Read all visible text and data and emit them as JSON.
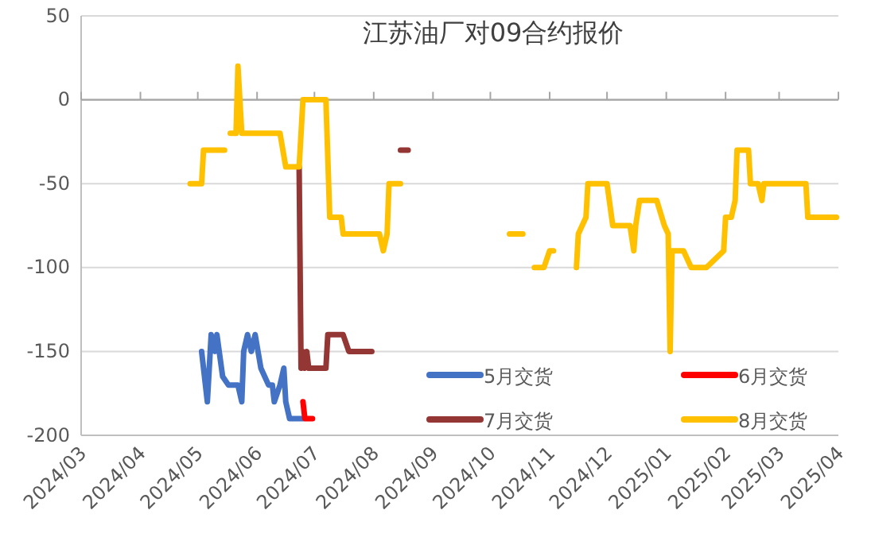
{
  "chart_data": {
    "type": "line",
    "title": "江苏油厂对09合约报价",
    "xlim": [
      "2024-03-01",
      "2025-04-01"
    ],
    "xticks": [
      {
        "value": "2024-03-01",
        "label": "2024/03"
      },
      {
        "value": "2024-04-01",
        "label": "2024/04"
      },
      {
        "value": "2024-05-01",
        "label": "2024/05"
      },
      {
        "value": "2024-06-01",
        "label": "2024/06"
      },
      {
        "value": "2024-07-01",
        "label": "2024/07"
      },
      {
        "value": "2024-08-01",
        "label": "2024/08"
      },
      {
        "value": "2024-09-01",
        "label": "2024/09"
      },
      {
        "value": "2024-10-01",
        "label": "2024/10"
      },
      {
        "value": "2024-11-01",
        "label": "2024/11"
      },
      {
        "value": "2024-12-01",
        "label": "2024/12"
      },
      {
        "value": "2025-01-01",
        "label": "2025/01"
      },
      {
        "value": "2025-02-01",
        "label": "2025/02"
      },
      {
        "value": "2025-03-01",
        "label": "2025/03"
      },
      {
        "value": "2025-04-01",
        "label": "2025/04"
      }
    ],
    "ylim": [
      -200,
      50
    ],
    "yticks": [
      -200,
      -150,
      -100,
      -50,
      0,
      50
    ],
    "grid": "y",
    "ref_lines": [
      {
        "axis": "y",
        "value": 0,
        "color": "#a6a6a6"
      }
    ],
    "legend": "bottom right",
    "line_style": "solid",
    "marker": "none",
    "series": [
      {
        "name": "5月交货",
        "color": "#4472c4",
        "x": [
          "2024-05-03",
          "2024-05-06",
          "2024-05-08",
          "2024-05-10",
          "2024-05-11",
          "2024-05-14",
          "2024-05-17",
          "2024-05-22",
          "2024-05-24",
          "2024-05-25",
          "2024-05-27",
          "2024-05-29",
          "2024-05-31",
          "2024-06-03",
          "2024-06-07",
          "2024-06-09",
          "2024-06-10",
          "2024-06-13",
          "2024-06-15",
          "2024-06-16",
          "2024-06-18",
          "2024-06-25"
        ],
        "values": [
          -150,
          -180,
          -140,
          -150,
          -140,
          -165,
          -170,
          -170,
          -180,
          -150,
          -140,
          -150,
          -140,
          -160,
          -170,
          -170,
          -180,
          -170,
          -160,
          -180,
          -190,
          -190
        ]
      },
      {
        "name": "6月交货",
        "color": "#ff0000",
        "x": [
          "2024-06-25",
          "2024-06-26",
          "2024-06-30"
        ],
        "values": [
          -180,
          -190,
          -190
        ]
      },
      {
        "name": "7月交货",
        "color": "#943634",
        "x": [
          "2024-06-23",
          "2024-06-24",
          "2024-06-25",
          "2024-06-26",
          "2024-06-27",
          "2024-06-28",
          "2024-07-07",
          "2024-07-08",
          "2024-07-16",
          "2024-07-19",
          "2024-07-31",
          "2024-08-05",
          "2024-08-15",
          "2024-08-19"
        ],
        "values": [
          -40,
          -160,
          -150,
          -160,
          -150,
          -160,
          -160,
          -140,
          -140,
          -150,
          -150,
          null,
          -30,
          -30
        ]
      },
      {
        "name": "8月交货",
        "color": "#ffc000",
        "x": [
          "2024-04-27",
          "2024-05-03",
          "2024-05-04",
          "2024-05-15",
          "2024-05-17",
          "2024-05-18",
          "2024-05-21",
          "2024-05-22",
          "2024-05-24",
          "2024-06-13",
          "2024-06-16",
          "2024-06-23",
          "2024-06-25",
          "2024-07-07",
          "2024-07-09",
          "2024-07-15",
          "2024-07-16",
          "2024-08-04",
          "2024-08-06",
          "2024-08-08",
          "2024-08-09",
          "2024-08-15",
          "2024-08-20",
          "2024-10-11",
          "2024-10-18",
          "2024-10-22",
          "2024-10-24",
          "2024-10-29",
          "2024-11-01",
          "2024-11-03",
          "2024-11-10",
          "2024-11-15",
          "2024-11-16",
          "2024-11-20",
          "2024-11-21",
          "2024-12-01",
          "2024-12-04",
          "2024-12-13",
          "2024-12-15",
          "2024-12-16",
          "2024-12-18",
          "2024-12-27",
          "2024-12-31",
          "2025-01-02",
          "2025-01-03",
          "2025-01-04",
          "2025-01-10",
          "2025-01-14",
          "2025-01-22",
          "2025-01-31",
          "2025-02-01",
          "2025-02-04",
          "2025-02-06",
          "2025-02-07",
          "2025-02-13",
          "2025-02-14",
          "2025-02-18",
          "2025-02-20",
          "2025-02-21",
          "2025-03-15",
          "2025-03-16",
          "2025-03-31"
        ],
        "values": [
          -50,
          -50,
          -30,
          -30,
          null,
          -20,
          -20,
          20,
          -20,
          -20,
          -40,
          -40,
          0,
          0,
          -70,
          -70,
          -80,
          -80,
          -90,
          -80,
          -50,
          -50,
          null,
          -80,
          -80,
          null,
          -100,
          -100,
          -90,
          -90,
          null,
          -100,
          -80,
          -70,
          -50,
          -50,
          -75,
          -75,
          -90,
          -75,
          -60,
          -60,
          -75,
          -80,
          -150,
          -90,
          -90,
          -100,
          -100,
          -90,
          -70,
          -70,
          -60,
          -30,
          -30,
          -50,
          -50,
          -60,
          -50,
          -50,
          -70,
          -70
        ]
      }
    ]
  }
}
